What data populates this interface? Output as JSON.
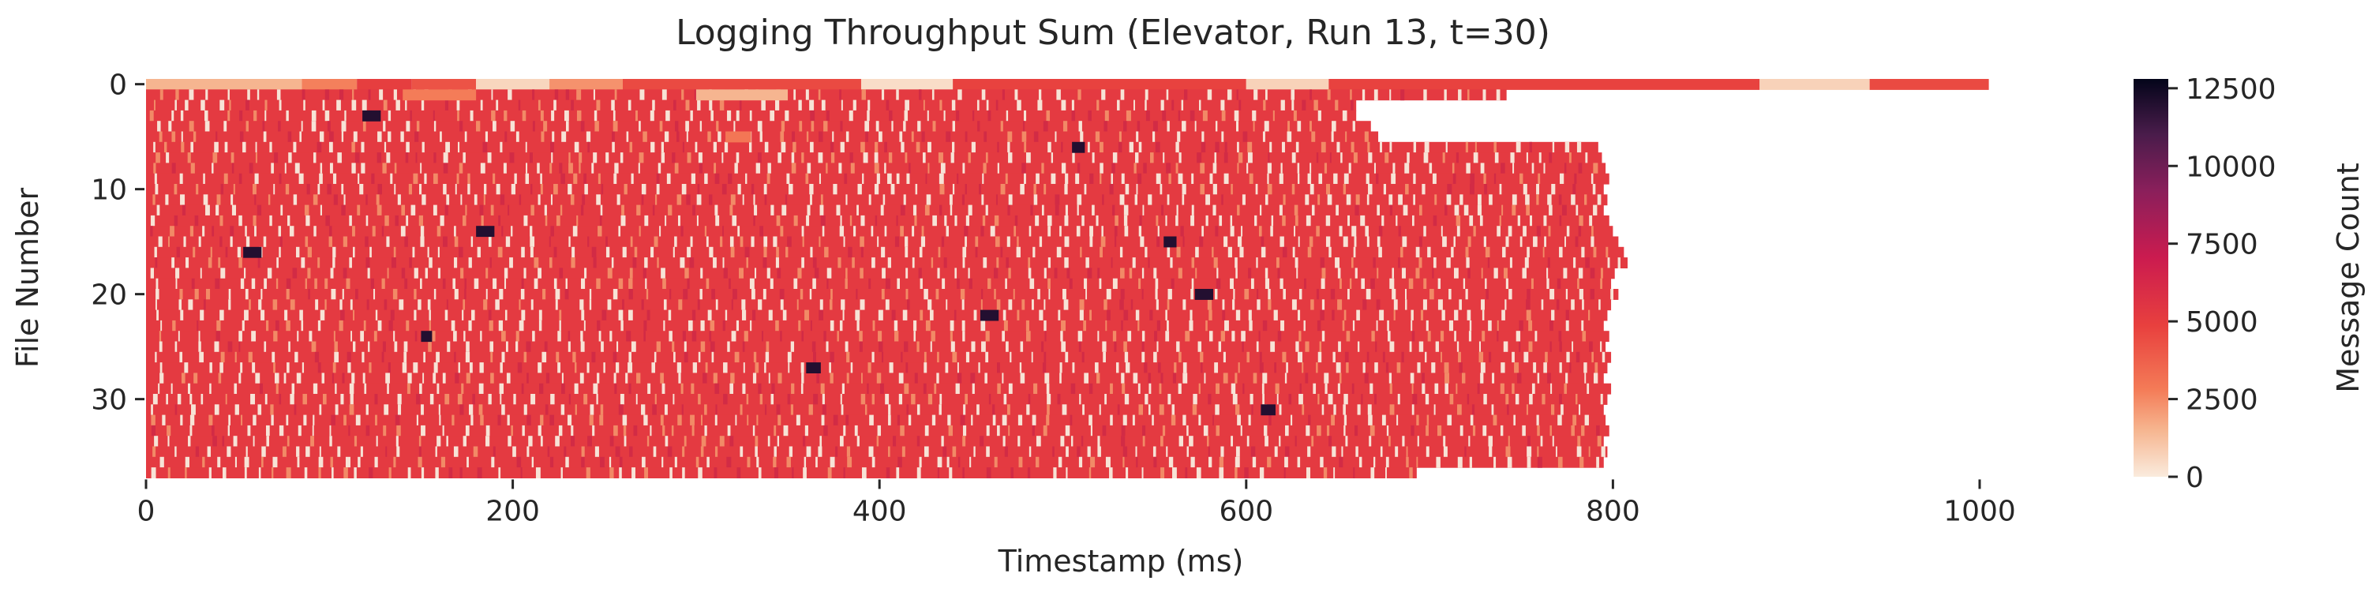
{
  "chart_data": {
    "type": "heatmap",
    "title": "Logging Throughput Sum (Elevator, Run 13, t=30)",
    "xlabel": "Timestamp (ms)",
    "ylabel": "File Number",
    "colorbar_label": "Message Count",
    "x_ticks": [
      0,
      200,
      400,
      600,
      800,
      1000
    ],
    "y_ticks": [
      0,
      10,
      20,
      30
    ],
    "colorbar_ticks": [
      0,
      2500,
      5000,
      7500,
      10000,
      12500
    ],
    "xlim": [
      0,
      1005
    ],
    "ylim": [
      0,
      38
    ],
    "color_range": [
      0,
      12800
    ],
    "colormap": "rocket_r",
    "colors": {
      "low": "#faebdd",
      "mid_low": "#f6a47c",
      "typical": "#e8403e",
      "mid_high": "#cb1b4f",
      "high": "#611f53",
      "max": "#03051a"
    },
    "typical_value": 5200,
    "rows": [
      {
        "file": 0,
        "end_ms": 1005
      },
      {
        "file": 1,
        "end_ms": 742
      },
      {
        "file": 2,
        "end_ms": 660
      },
      {
        "file": 3,
        "end_ms": 660
      },
      {
        "file": 4,
        "end_ms": 668
      },
      {
        "file": 5,
        "end_ms": 672
      },
      {
        "file": 6,
        "end_ms": 792
      },
      {
        "file": 7,
        "end_ms": 794
      },
      {
        "file": 8,
        "end_ms": 796
      },
      {
        "file": 9,
        "end_ms": 798
      },
      {
        "file": 10,
        "end_ms": 795
      },
      {
        "file": 11,
        "end_ms": 797
      },
      {
        "file": 12,
        "end_ms": 795
      },
      {
        "file": 13,
        "end_ms": 798
      },
      {
        "file": 14,
        "end_ms": 800
      },
      {
        "file": 15,
        "end_ms": 803
      },
      {
        "file": 16,
        "end_ms": 806
      },
      {
        "file": 17,
        "end_ms": 808
      },
      {
        "file": 18,
        "end_ms": 801
      },
      {
        "file": 19,
        "end_ms": 799
      },
      {
        "file": 20,
        "end_ms": 803
      },
      {
        "file": 21,
        "end_ms": 799
      },
      {
        "file": 22,
        "end_ms": 797
      },
      {
        "file": 23,
        "end_ms": 795
      },
      {
        "file": 24,
        "end_ms": 798
      },
      {
        "file": 25,
        "end_ms": 796
      },
      {
        "file": 26,
        "end_ms": 799
      },
      {
        "file": 27,
        "end_ms": 797
      },
      {
        "file": 28,
        "end_ms": 795
      },
      {
        "file": 29,
        "end_ms": 799
      },
      {
        "file": 30,
        "end_ms": 797
      },
      {
        "file": 31,
        "end_ms": 795
      },
      {
        "file": 32,
        "end_ms": 796
      },
      {
        "file": 33,
        "end_ms": 798
      },
      {
        "file": 34,
        "end_ms": 795
      },
      {
        "file": 35,
        "end_ms": 797
      },
      {
        "file": 36,
        "end_ms": 795
      },
      {
        "file": 37,
        "end_ms": 693
      }
    ],
    "file0_segments": [
      {
        "start_ms": 0,
        "end_ms": 85,
        "value": 1500
      },
      {
        "start_ms": 85,
        "end_ms": 115,
        "value": 2700
      },
      {
        "start_ms": 115,
        "end_ms": 145,
        "value": 5000
      },
      {
        "start_ms": 145,
        "end_ms": 180,
        "value": 4200
      },
      {
        "start_ms": 180,
        "end_ms": 220,
        "value": 600
      },
      {
        "start_ms": 220,
        "end_ms": 260,
        "value": 2300
      },
      {
        "start_ms": 260,
        "end_ms": 390,
        "value": 4500
      },
      {
        "start_ms": 390,
        "end_ms": 440,
        "value": 400
      },
      {
        "start_ms": 440,
        "end_ms": 600,
        "value": 4800
      },
      {
        "start_ms": 600,
        "end_ms": 645,
        "value": 700
      },
      {
        "start_ms": 645,
        "end_ms": 880,
        "value": 4800
      },
      {
        "start_ms": 880,
        "end_ms": 940,
        "value": 700
      },
      {
        "start_ms": 940,
        "end_ms": 1005,
        "value": 4500
      }
    ],
    "notable_cells": [
      {
        "file": 1,
        "start_ms": 140,
        "end_ms": 180,
        "value": 2800
      },
      {
        "file": 1,
        "start_ms": 300,
        "end_ms": 350,
        "value": 1500
      },
      {
        "file": 5,
        "start_ms": 316,
        "end_ms": 330,
        "value": 3000
      },
      {
        "file": 3,
        "start_ms": 118,
        "end_ms": 128,
        "value": 12000
      },
      {
        "file": 6,
        "start_ms": 505,
        "end_ms": 512,
        "value": 12000
      },
      {
        "file": 14,
        "start_ms": 180,
        "end_ms": 190,
        "value": 12000
      },
      {
        "file": 15,
        "start_ms": 555,
        "end_ms": 562,
        "value": 12000
      },
      {
        "file": 16,
        "start_ms": 53,
        "end_ms": 63,
        "value": 12000
      },
      {
        "file": 20,
        "start_ms": 572,
        "end_ms": 582,
        "value": 12000
      },
      {
        "file": 22,
        "start_ms": 455,
        "end_ms": 465,
        "value": 12000
      },
      {
        "file": 24,
        "start_ms": 150,
        "end_ms": 156,
        "value": 12000
      },
      {
        "file": 27,
        "start_ms": 360,
        "end_ms": 368,
        "value": 12000
      },
      {
        "file": 31,
        "start_ms": 608,
        "end_ms": 616,
        "value": 12000
      }
    ]
  }
}
